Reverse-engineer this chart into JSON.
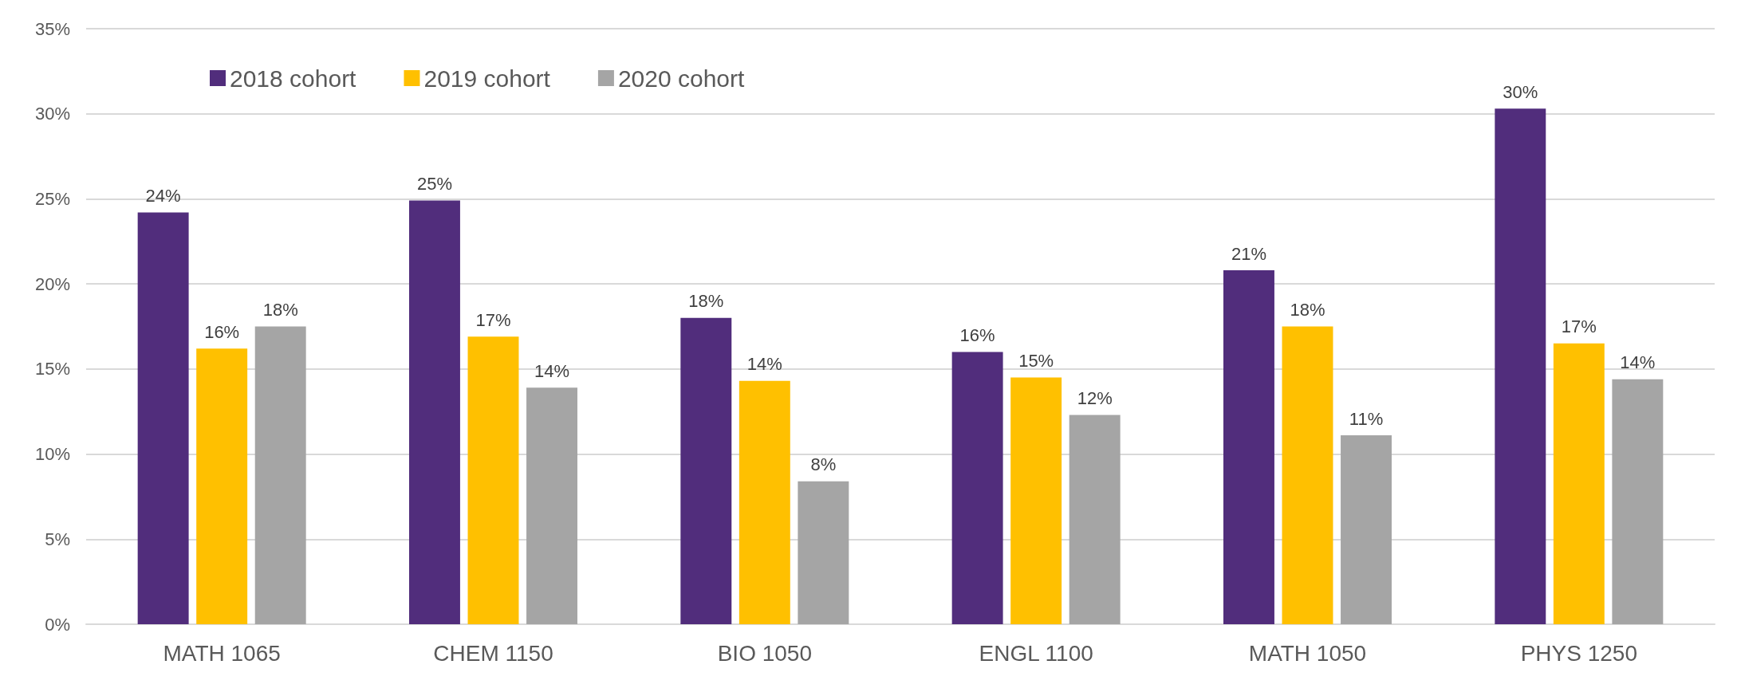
{
  "chart_data": {
    "type": "bar",
    "categories": [
      "MATH 1065",
      "CHEM 1150",
      "BIO 1050",
      "ENGL 1100",
      "MATH 1050",
      "PHYS 1250"
    ],
    "series": [
      {
        "name": "2018 cohort",
        "color": "#512d7c",
        "values": [
          24.2,
          24.9,
          18.0,
          16.0,
          20.8,
          30.3
        ],
        "value_labels": [
          "24%",
          "25%",
          "18%",
          "16%",
          "21%",
          "30%"
        ]
      },
      {
        "name": "2019 cohort",
        "color": "#ffc000",
        "values": [
          16.2,
          16.9,
          14.3,
          14.5,
          17.5,
          16.5
        ],
        "value_labels": [
          "16%",
          "17%",
          "14%",
          "15%",
          "18%",
          "17%"
        ]
      },
      {
        "name": "2020 cohort",
        "color": "#a5a5a5",
        "values": [
          17.5,
          13.9,
          8.4,
          12.3,
          11.1,
          14.4
        ],
        "value_labels": [
          "18%",
          "14%",
          "8%",
          "12%",
          "11%",
          "14%"
        ]
      }
    ],
    "ylim": [
      0,
      35
    ],
    "yticks": [
      {
        "value": 0,
        "label": "0%"
      },
      {
        "value": 5,
        "label": "5%"
      },
      {
        "value": 10,
        "label": "10%"
      },
      {
        "value": 15,
        "label": "15%"
      },
      {
        "value": 20,
        "label": "20%"
      },
      {
        "value": 25,
        "label": "25%"
      },
      {
        "value": 30,
        "label": "30%"
      },
      {
        "value": 35,
        "label": "35%"
      }
    ],
    "grid": "y",
    "legend": "top left"
  }
}
